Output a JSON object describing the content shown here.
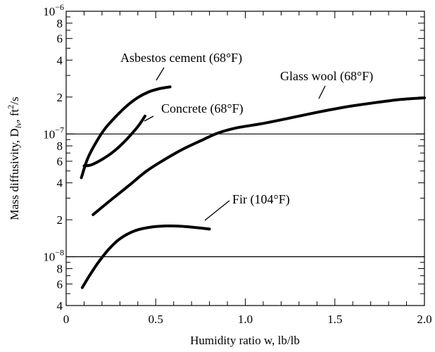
{
  "chart_data": {
    "type": "line",
    "xlabel": "Humidity ratio w, lb/lb",
    "ylabel": {
      "main": "Mass diffusivity, D",
      "sub": "lv",
      "mid": ", ft",
      "sup": "2",
      "end": "/s"
    },
    "x_range": [
      0,
      2.0
    ],
    "y_range": [
      4e-09,
      1e-06
    ],
    "y_scale": "log",
    "x_ticks": [
      {
        "value": 0,
        "label": "0"
      },
      {
        "value": 0.5,
        "label": "0.5"
      },
      {
        "value": 1.0,
        "label": "1.0"
      },
      {
        "value": 1.5,
        "label": "1.5"
      },
      {
        "value": 2.0,
        "label": "2.0"
      }
    ],
    "y_ticks": [
      {
        "value": 1e-06,
        "base": "10",
        "exp": "−6"
      },
      {
        "value": 8e-07,
        "label": "8"
      },
      {
        "value": 6e-07,
        "label": "6"
      },
      {
        "value": 4e-07,
        "label": "4"
      },
      {
        "value": 2e-07,
        "label": "2"
      },
      {
        "value": 1e-07,
        "base": "10",
        "exp": "−7"
      },
      {
        "value": 8e-08,
        "label": "8"
      },
      {
        "value": 6e-08,
        "label": "6"
      },
      {
        "value": 4e-08,
        "label": "4"
      },
      {
        "value": 2e-08,
        "label": "2"
      },
      {
        "value": 1e-08,
        "base": "10",
        "exp": "−8"
      },
      {
        "value": 8e-09,
        "label": "8"
      },
      {
        "value": 6e-09,
        "label": "6"
      },
      {
        "value": 4e-09,
        "label": "4"
      }
    ],
    "y_minor_ticks": [
      9e-07,
      7e-07,
      5e-07,
      3e-07,
      9e-08,
      7e-08,
      5e-08,
      3e-08,
      9e-09,
      7e-09,
      5e-09
    ],
    "x_minor_step": 0.1,
    "grid": "horizontal lines at decades 1e-7 and 1e-8",
    "series": [
      {
        "name": "Asbestos cement (68°F)",
        "x": [
          0.085,
          0.12,
          0.17,
          0.22,
          0.28,
          0.34,
          0.4,
          0.46,
          0.52,
          0.58
        ],
        "y": [
          4.4e-08,
          6.3e-08,
          8.7e-08,
          1.12e-07,
          1.4e-07,
          1.7e-07,
          1.98e-07,
          2.2e-07,
          2.34e-07,
          2.42e-07
        ]
      },
      {
        "name": "Concrete (68°F)",
        "x": [
          0.1,
          0.14,
          0.2,
          0.26,
          0.32,
          0.37,
          0.41,
          0.44
        ],
        "y": [
          5.5e-08,
          5.6e-08,
          6.2e-08,
          7.1e-08,
          8.5e-08,
          1.02e-07,
          1.2e-07,
          1.4e-07
        ]
      },
      {
        "name": "Glass wool (68°F)",
        "x": [
          0.15,
          0.25,
          0.35,
          0.45,
          0.55,
          0.65,
          0.75,
          0.85,
          0.95,
          1.1,
          1.25,
          1.4,
          1.55,
          1.7,
          1.85,
          2.0
        ],
        "y": [
          2.2e-08,
          2.9e-08,
          3.8e-08,
          5e-08,
          6.2e-08,
          7.5e-08,
          8.8e-08,
          1.02e-07,
          1.12e-07,
          1.22e-07,
          1.35e-07,
          1.5e-07,
          1.65e-07,
          1.78e-07,
          1.9e-07,
          1.97e-07
        ]
      },
      {
        "name": "Fir (104°F)",
        "x": [
          0.09,
          0.13,
          0.18,
          0.24,
          0.3,
          0.38,
          0.46,
          0.55,
          0.64,
          0.72,
          0.8
        ],
        "y": [
          5.6e-09,
          7e-09,
          9e-09,
          1.16e-08,
          1.4e-08,
          1.62e-08,
          1.73e-08,
          1.78e-08,
          1.77e-08,
          1.73e-08,
          1.68e-08
        ]
      }
    ],
    "annotations": [
      {
        "text": "Asbestos cement (68°F)",
        "series": 0
      },
      {
        "text": "Concrete (68°F)",
        "series": 1
      },
      {
        "text": "Glass wool (68°F)",
        "series": 2
      },
      {
        "text": "Fir (104°F)",
        "series": 3
      }
    ]
  }
}
